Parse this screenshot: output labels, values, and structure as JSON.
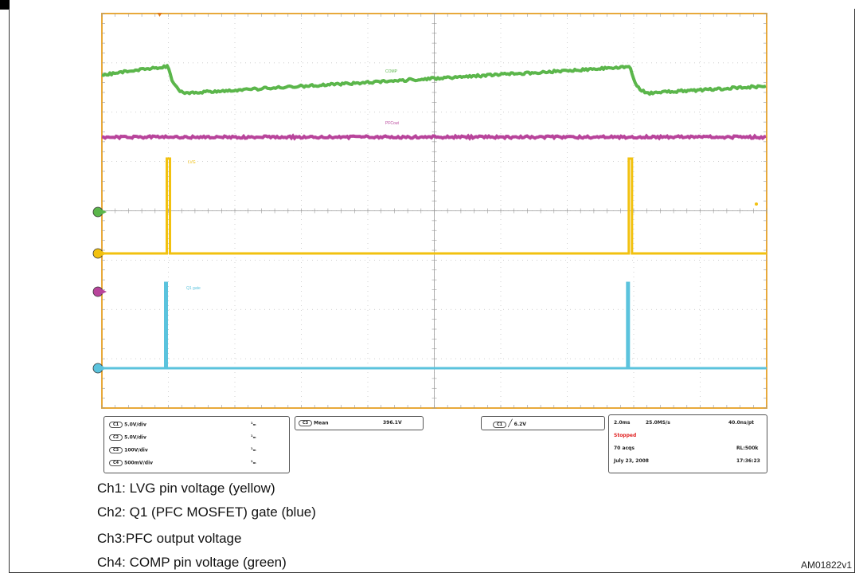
{
  "colors": {
    "grid_border": "#e8a93a",
    "grid_line": "#bfbfbf",
    "ch1": "#f2c10f",
    "ch2": "#5bc3dd",
    "ch3": "#b8449b",
    "ch4": "#5bb64b",
    "stopped": "#e02020"
  },
  "chart_data": {
    "type": "line",
    "x_divisions": 10,
    "y_divisions": 8,
    "grid": true,
    "period_divisions": 6.95,
    "first_event_division": 1.0,
    "series": [
      {
        "name": "COMP",
        "channel": "Ch4",
        "color": "green",
        "shape": "sawtooth_decay"
      },
      {
        "name": "PFCout",
        "channel": "Ch3",
        "color": "magenta",
        "shape": "flat"
      },
      {
        "name": "LVG",
        "channel": "Ch1",
        "color": "yellow",
        "shape": "pulse"
      },
      {
        "name": "Q1 gate",
        "channel": "Ch2",
        "color": "blue",
        "shape": "pulse"
      }
    ]
  },
  "scope": {
    "channel_settings": [
      {
        "tag": "C1",
        "value": "5.0V/div",
        "coupling": "¹ₘ"
      },
      {
        "tag": "C2",
        "value": "5.0V/div",
        "coupling": "¹ₘ"
      },
      {
        "tag": "C3",
        "value": "100V/div",
        "coupling": "¹ₘ"
      },
      {
        "tag": "C4",
        "value": "500mV/div",
        "coupling": "¹ₘ"
      }
    ],
    "measure": {
      "tag": "C3",
      "label": "Mean",
      "value": "396.1V"
    },
    "trigger": {
      "tag": "C1",
      "value": "6.2V"
    },
    "acquisition": {
      "timebase": "2.0ms",
      "sample_rate": "25.0MS/s",
      "resolution": "40.0ns/pt",
      "status": "Stopped",
      "acqs": "70 acqs",
      "record_length": "RL:500k",
      "date": "July 23, 2008",
      "time": "17:36:23"
    }
  },
  "captions": [
    "Ch1: LVG pin voltage (yellow)",
    "Ch2: Q1 (PFC MOSFET) gate (blue)",
    "Ch3:PFC output voltage",
    "Ch4: COMP pin voltage (green)"
  ],
  "figure_code": "AM01822v1"
}
